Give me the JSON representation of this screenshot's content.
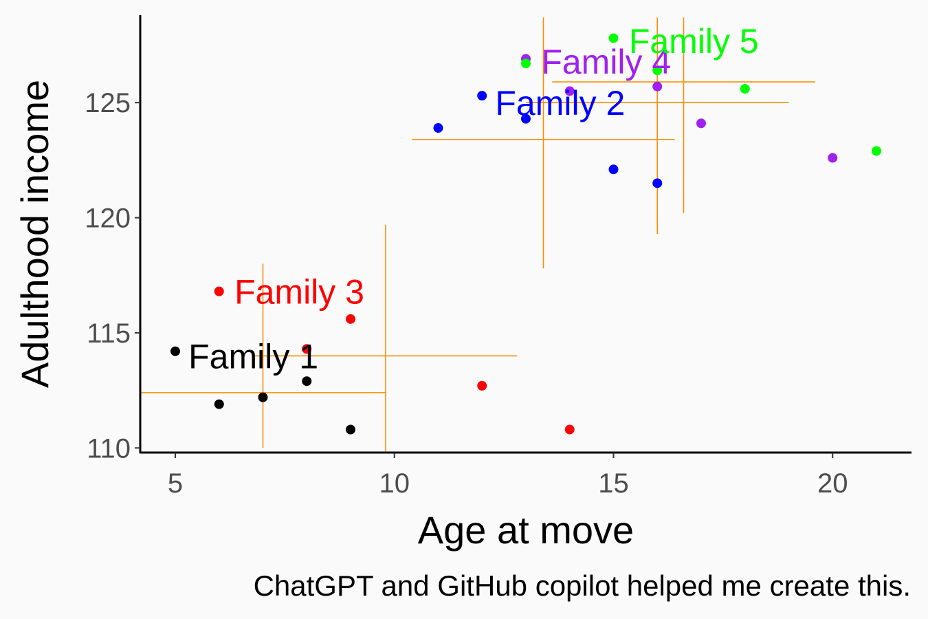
{
  "chart_data": {
    "type": "scatter",
    "xlabel": "Age at move",
    "ylabel": "Adulthood income",
    "caption": "ChatGPT and GitHub copilot helped me create this.",
    "xlim": [
      4.2,
      21.8
    ],
    "ylim": [
      109.8,
      128.8
    ],
    "x_ticks": [
      5,
      10,
      15,
      20
    ],
    "y_ticks": [
      110,
      115,
      120,
      125
    ],
    "grid": false,
    "legend": "none",
    "crosshair_color": "#FF8C00",
    "series": [
      {
        "name": "Family 1",
        "color": "#000000",
        "points": [
          {
            "x": 5,
            "y": 114.2
          },
          {
            "x": 6,
            "y": 111.9
          },
          {
            "x": 7,
            "y": 112.2
          },
          {
            "x": 8,
            "y": 112.9
          },
          {
            "x": 9,
            "y": 110.8
          }
        ],
        "label": {
          "x": 5.3,
          "y": 114.0
        },
        "crosshair": {
          "x": 7,
          "y": 112.4,
          "x_range": [
            4.2,
            9.8
          ],
          "y_range": [
            110.0,
            118.0
          ]
        }
      },
      {
        "name": "Family 2",
        "color": "#0000FF",
        "points": [
          {
            "x": 11,
            "y": 123.9
          },
          {
            "x": 12,
            "y": 125.3
          },
          {
            "x": 13,
            "y": 124.3
          },
          {
            "x": 15,
            "y": 122.1
          },
          {
            "x": 16,
            "y": 121.5
          }
        ],
        "label": {
          "x": 12.3,
          "y": 125.0
        },
        "crosshair": {
          "x": 13.4,
          "y": 123.4,
          "x_range": [
            10.4,
            16.4
          ],
          "y_range": [
            117.8,
            128.7
          ]
        }
      },
      {
        "name": "Family 3",
        "color": "#FF0000",
        "points": [
          {
            "x": 6,
            "y": 116.8
          },
          {
            "x": 8,
            "y": 114.3
          },
          {
            "x": 9,
            "y": 115.6
          },
          {
            "x": 12,
            "y": 112.7
          },
          {
            "x": 14,
            "y": 110.8
          }
        ],
        "label": {
          "x": 6.35,
          "y": 116.8
        },
        "crosshair": {
          "x": 9.8,
          "y": 114.0,
          "x_range": [
            6.8,
            12.8
          ],
          "y_range": [
            109.8,
            119.7
          ]
        }
      },
      {
        "name": "Family 4",
        "color": "#A020F0",
        "points": [
          {
            "x": 13,
            "y": 126.9
          },
          {
            "x": 14,
            "y": 125.5
          },
          {
            "x": 16,
            "y": 125.7
          },
          {
            "x": 17,
            "y": 124.1
          },
          {
            "x": 20,
            "y": 122.6
          }
        ],
        "label": {
          "x": 13.35,
          "y": 126.8
        },
        "crosshair": {
          "x": 16.0,
          "y": 125.0,
          "x_range": [
            13.0,
            19.0
          ],
          "y_range": [
            119.3,
            128.7
          ]
        }
      },
      {
        "name": "Family 5",
        "color": "#00FF00",
        "points": [
          {
            "x": 13,
            "y": 126.7
          },
          {
            "x": 15,
            "y": 127.8
          },
          {
            "x": 16,
            "y": 126.4
          },
          {
            "x": 18,
            "y": 125.6
          },
          {
            "x": 21,
            "y": 122.9
          }
        ],
        "label": {
          "x": 15.35,
          "y": 127.7
        },
        "crosshair": {
          "x": 16.6,
          "y": 125.9,
          "x_range": [
            13.6,
            19.6
          ],
          "y_range": [
            120.2,
            128.7
          ]
        }
      }
    ]
  }
}
